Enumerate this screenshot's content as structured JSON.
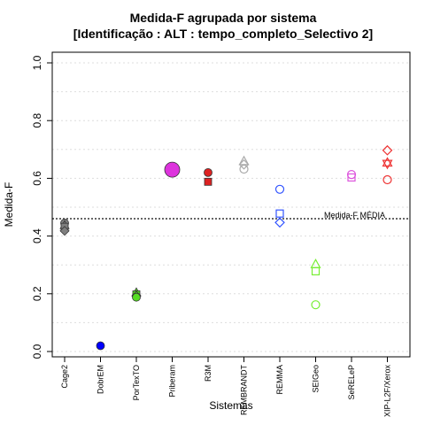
{
  "chart_data": {
    "type": "scatter",
    "title": "Medida-F agrupada por sistema",
    "subtitle": "[Identificação : ALT : tempo_completo_Selectivo 2]",
    "xlabel": "Sistemas",
    "ylabel": "Medida-F",
    "ylim": [
      0.0,
      1.0
    ],
    "yticks": [
      "0.0",
      "0.2",
      "0.4",
      "0.6",
      "0.8",
      "1.0"
    ],
    "grid": "dotted horizontal every 0.1",
    "categories": [
      "Cage2",
      "DobrEM",
      "PorTexTO",
      "Priberam",
      "R3M",
      "REMBRANDT",
      "REMMA",
      "SEIGeo",
      "SeRELeP",
      "XIP-L2F/Xerox"
    ],
    "reference_line": {
      "label": "Medida-F MÉDIA",
      "value": 0.46
    },
    "points": [
      {
        "category": "Cage2",
        "y": 0.445,
        "shape": "circle",
        "color": "#7f7f7f",
        "filled": true
      },
      {
        "category": "Cage2",
        "y": 0.438,
        "shape": "triangle",
        "color": "#7f7f7f",
        "filled": true
      },
      {
        "category": "Cage2",
        "y": 0.432,
        "shape": "square",
        "color": "#7f7f7f",
        "filled": true
      },
      {
        "category": "Cage2",
        "y": 0.418,
        "shape": "diamond",
        "color": "#7f7f7f",
        "filled": true
      },
      {
        "category": "DobrEM",
        "y": 0.02,
        "shape": "circle",
        "color": "#0000ff",
        "filled": true
      },
      {
        "category": "PorTexTO",
        "y": 0.205,
        "shape": "triangle",
        "color": "#55dd22",
        "filled": true
      },
      {
        "category": "PorTexTO",
        "y": 0.198,
        "shape": "square",
        "color": "#55dd22",
        "filled": true
      },
      {
        "category": "PorTexTO",
        "y": 0.193,
        "shape": "diamond",
        "color": "#55dd22",
        "filled": true
      },
      {
        "category": "PorTexTO",
        "y": 0.188,
        "shape": "circle",
        "color": "#55dd22",
        "filled": true
      },
      {
        "category": "Priberam",
        "y": 0.63,
        "shape": "circle",
        "color": "#dd33dd",
        "filled": true,
        "large": true
      },
      {
        "category": "R3M",
        "y": 0.62,
        "shape": "circle",
        "color": "#dd2222",
        "filled": true
      },
      {
        "category": "R3M",
        "y": 0.588,
        "shape": "square",
        "color": "#dd2222",
        "filled": true
      },
      {
        "category": "REMBRANDT",
        "y": 0.66,
        "shape": "triangle",
        "color": "#aaaaaa",
        "filled": false
      },
      {
        "category": "REMBRANDT",
        "y": 0.648,
        "shape": "diamond",
        "color": "#aaaaaa",
        "filled": false
      },
      {
        "category": "REMBRANDT",
        "y": 0.632,
        "shape": "circle",
        "color": "#aaaaaa",
        "filled": false
      },
      {
        "category": "REMMA",
        "y": 0.562,
        "shape": "circle",
        "color": "#3355ff",
        "filled": false
      },
      {
        "category": "REMMA",
        "y": 0.478,
        "shape": "square",
        "color": "#3355ff",
        "filled": false
      },
      {
        "category": "REMMA",
        "y": 0.447,
        "shape": "diamond",
        "color": "#3355ff",
        "filled": false
      },
      {
        "category": "SEIGeo",
        "y": 0.303,
        "shape": "triangle",
        "color": "#77ee33",
        "filled": false
      },
      {
        "category": "SEIGeo",
        "y": 0.278,
        "shape": "square",
        "color": "#77ee33",
        "filled": false
      },
      {
        "category": "SEIGeo",
        "y": 0.162,
        "shape": "circle",
        "color": "#77ee33",
        "filled": false
      },
      {
        "category": "SeRELeP",
        "y": 0.613,
        "shape": "circle",
        "color": "#dd55dd",
        "filled": false
      },
      {
        "category": "SeRELeP",
        "y": 0.603,
        "shape": "square",
        "color": "#dd55dd",
        "filled": false
      },
      {
        "category": "XIP-L2F/Xerox",
        "y": 0.697,
        "shape": "diamond",
        "color": "#ee3333",
        "filled": false
      },
      {
        "category": "XIP-L2F/Xerox",
        "y": 0.655,
        "shape": "triangle",
        "color": "#ee3333",
        "filled": false
      },
      {
        "category": "XIP-L2F/Xerox",
        "y": 0.65,
        "shape": "triangle-down",
        "color": "#ee3333",
        "filled": false
      },
      {
        "category": "XIP-L2F/Xerox",
        "y": 0.595,
        "shape": "circle",
        "color": "#ee3333",
        "filled": false
      }
    ]
  }
}
